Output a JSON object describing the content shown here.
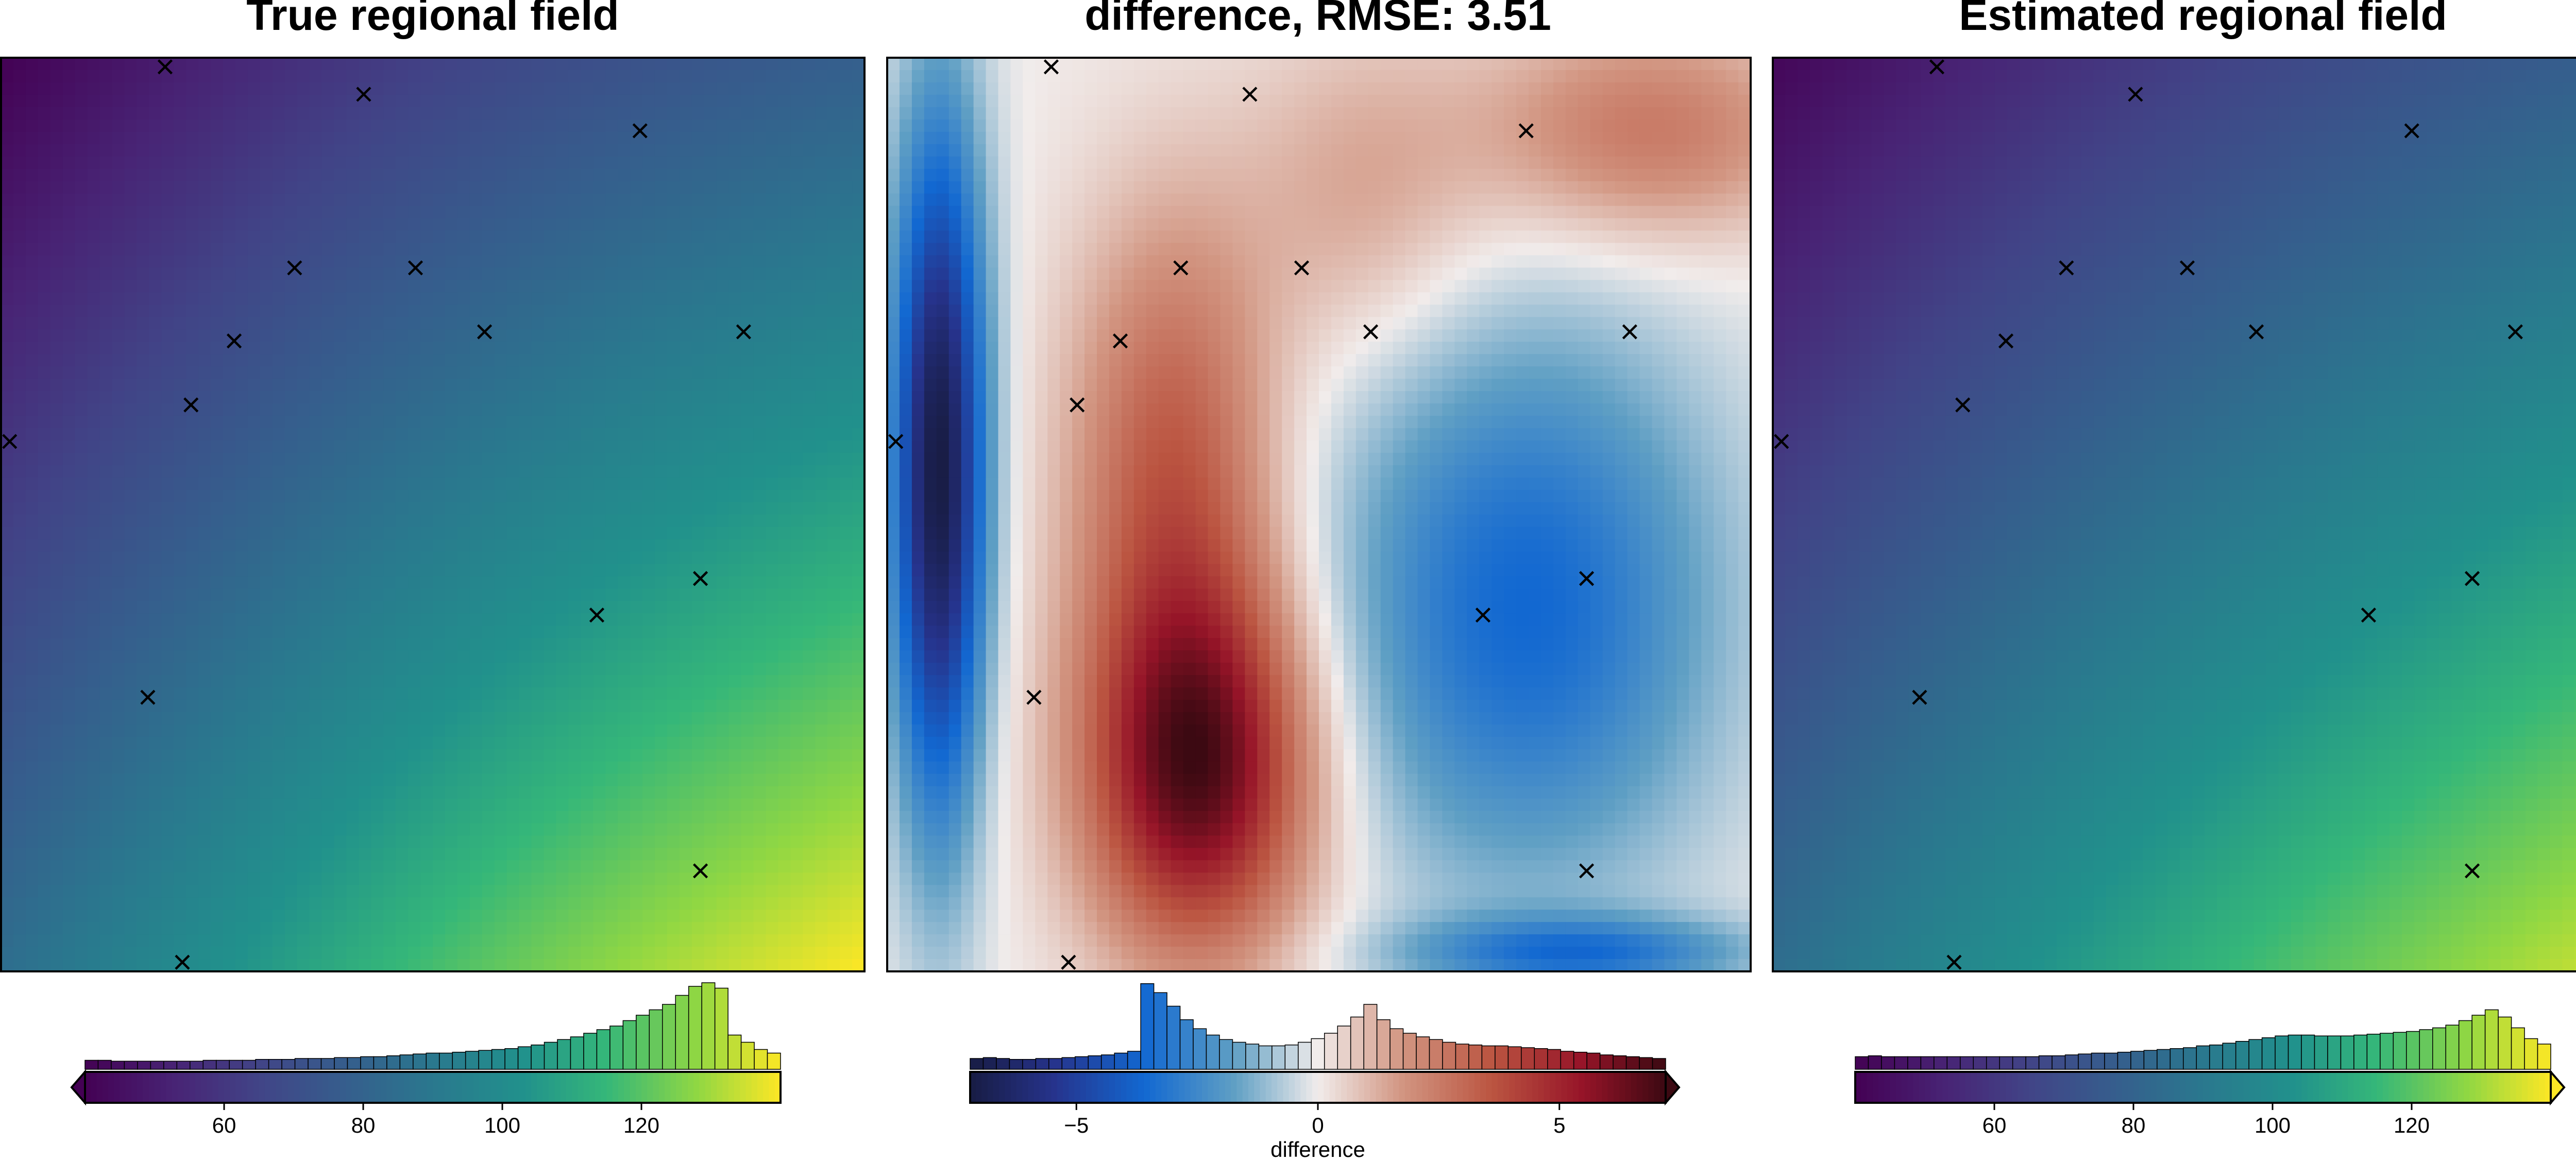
{
  "chart_data": [
    {
      "type": "heatmap",
      "title": "True regional field",
      "colormap": "viridis",
      "color_range": [
        40,
        140
      ],
      "colorbar": {
        "ticks": [
          60,
          80,
          100,
          120
        ],
        "label": "",
        "extend": "min",
        "histogram": [
          0.1,
          0.1,
          0.09,
          0.09,
          0.09,
          0.09,
          0.09,
          0.09,
          0.09,
          0.1,
          0.1,
          0.1,
          0.1,
          0.11,
          0.11,
          0.11,
          0.12,
          0.12,
          0.12,
          0.13,
          0.13,
          0.14,
          0.14,
          0.15,
          0.16,
          0.17,
          0.18,
          0.18,
          0.19,
          0.2,
          0.21,
          0.22,
          0.23,
          0.25,
          0.27,
          0.3,
          0.33,
          0.36,
          0.4,
          0.44,
          0.48,
          0.54,
          0.6,
          0.66,
          0.72,
          0.82,
          0.92,
          0.96,
          0.9,
          0.38,
          0.3,
          0.22,
          0.18
        ]
      },
      "field": "regional",
      "points": [
        [
          0.19,
          0.01
        ],
        [
          0.42,
          0.04
        ],
        [
          0.74,
          0.08
        ],
        [
          0.34,
          0.23
        ],
        [
          0.48,
          0.23
        ],
        [
          0.56,
          0.3
        ],
        [
          0.86,
          0.3
        ],
        [
          0.27,
          0.31
        ],
        [
          0.22,
          0.38
        ],
        [
          0.01,
          0.42
        ],
        [
          0.81,
          0.57
        ],
        [
          0.69,
          0.61
        ],
        [
          0.17,
          0.7
        ],
        [
          0.81,
          0.89
        ],
        [
          0.21,
          0.99
        ]
      ]
    },
    {
      "type": "heatmap",
      "title": "difference, RMSE: 3.51",
      "colormap": "balance",
      "color_range": [
        -7.2,
        7.2
      ],
      "colorbar": {
        "ticks": [
          -5,
          0,
          5
        ],
        "tick_labels": [
          "−5",
          "0",
          "5"
        ],
        "label": "difference",
        "extend": "max",
        "histogram": [
          0.12,
          0.13,
          0.12,
          0.11,
          0.11,
          0.12,
          0.12,
          0.13,
          0.14,
          0.15,
          0.16,
          0.18,
          0.2,
          0.95,
          0.85,
          0.7,
          0.55,
          0.45,
          0.38,
          0.33,
          0.3,
          0.28,
          0.26,
          0.26,
          0.27,
          0.3,
          0.34,
          0.4,
          0.48,
          0.58,
          0.72,
          0.55,
          0.45,
          0.4,
          0.36,
          0.33,
          0.3,
          0.28,
          0.27,
          0.26,
          0.26,
          0.25,
          0.24,
          0.23,
          0.22,
          0.2,
          0.19,
          0.18,
          0.16,
          0.15,
          0.14,
          0.13,
          0.12
        ]
      },
      "field": "difference",
      "points": [
        [
          0.19,
          0.01
        ],
        [
          0.42,
          0.04
        ],
        [
          0.74,
          0.08
        ],
        [
          0.34,
          0.23
        ],
        [
          0.48,
          0.23
        ],
        [
          0.56,
          0.3
        ],
        [
          0.86,
          0.3
        ],
        [
          0.27,
          0.31
        ],
        [
          0.22,
          0.38
        ],
        [
          0.01,
          0.42
        ],
        [
          0.81,
          0.57
        ],
        [
          0.69,
          0.61
        ],
        [
          0.17,
          0.7
        ],
        [
          0.81,
          0.89
        ],
        [
          0.21,
          0.99
        ]
      ]
    },
    {
      "type": "heatmap",
      "title": "Estimated regional field",
      "colormap": "viridis",
      "color_range": [
        40,
        140
      ],
      "colorbar": {
        "ticks": [
          60,
          80,
          100,
          120
        ],
        "label": "",
        "extend": "max",
        "histogram": [
          0.14,
          0.15,
          0.14,
          0.14,
          0.14,
          0.14,
          0.14,
          0.14,
          0.14,
          0.14,
          0.14,
          0.14,
          0.14,
          0.14,
          0.15,
          0.15,
          0.16,
          0.17,
          0.18,
          0.18,
          0.19,
          0.2,
          0.21,
          0.22,
          0.23,
          0.24,
          0.26,
          0.27,
          0.29,
          0.31,
          0.33,
          0.35,
          0.37,
          0.38,
          0.38,
          0.37,
          0.37,
          0.37,
          0.38,
          0.39,
          0.4,
          0.41,
          0.42,
          0.44,
          0.46,
          0.49,
          0.54,
          0.6,
          0.66,
          0.58,
          0.46,
          0.34,
          0.28
        ]
      },
      "field": "regional_est",
      "points": [
        [
          0.19,
          0.01
        ],
        [
          0.42,
          0.04
        ],
        [
          0.74,
          0.08
        ],
        [
          0.34,
          0.23
        ],
        [
          0.48,
          0.23
        ],
        [
          0.56,
          0.3
        ],
        [
          0.86,
          0.3
        ],
        [
          0.27,
          0.31
        ],
        [
          0.22,
          0.38
        ],
        [
          0.01,
          0.42
        ],
        [
          0.81,
          0.57
        ],
        [
          0.69,
          0.61
        ],
        [
          0.17,
          0.7
        ],
        [
          0.81,
          0.89
        ],
        [
          0.21,
          0.99
        ]
      ]
    }
  ]
}
